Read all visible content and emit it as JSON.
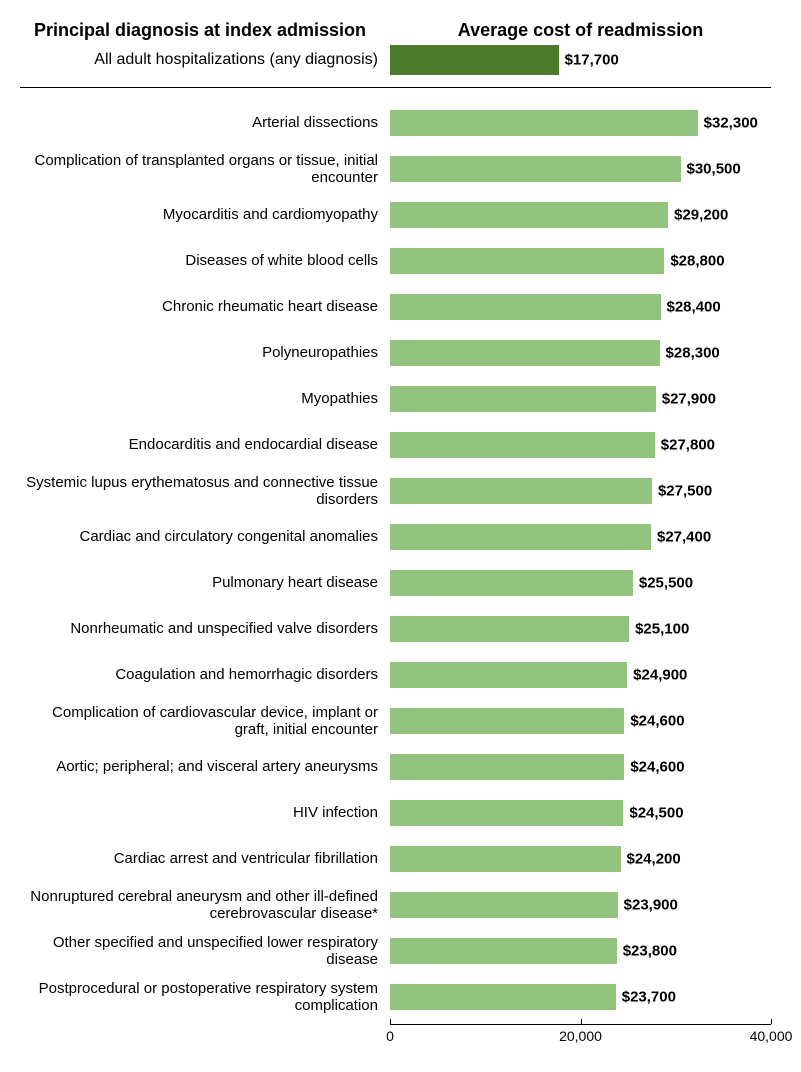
{
  "header": {
    "left": "Principal diagnosis at index admission",
    "right": "Average cost of readmission"
  },
  "axis": {
    "max": 40000,
    "ticks": [
      {
        "value": 0,
        "label": "0"
      },
      {
        "value": 20000,
        "label": "20,000"
      },
      {
        "value": 40000,
        "label": "40,000"
      }
    ]
  },
  "colors": {
    "summary_bar": "#4b7a2c",
    "item_bar": "#92c47d",
    "text": "#000000",
    "background": "#ffffff"
  },
  "summary": {
    "label": "All adult hospitalizations (any diagnosis)",
    "value": 17700,
    "value_label": "$17,700"
  },
  "items": [
    {
      "label": "Arterial dissections",
      "value": 32300,
      "value_label": "$32,300"
    },
    {
      "label": "Complication of transplanted organs or tissue, initial encounter",
      "value": 30500,
      "value_label": "$30,500"
    },
    {
      "label": "Myocarditis and cardiomyopathy",
      "value": 29200,
      "value_label": "$29,200"
    },
    {
      "label": "Diseases of white blood cells",
      "value": 28800,
      "value_label": "$28,800"
    },
    {
      "label": "Chronic rheumatic heart disease",
      "value": 28400,
      "value_label": "$28,400"
    },
    {
      "label": "Polyneuropathies",
      "value": 28300,
      "value_label": "$28,300"
    },
    {
      "label": "Myopathies",
      "value": 27900,
      "value_label": "$27,900"
    },
    {
      "label": "Endocarditis and endocardial disease",
      "value": 27800,
      "value_label": "$27,800"
    },
    {
      "label": "Systemic lupus erythematosus and connective tissue disorders",
      "value": 27500,
      "value_label": "$27,500"
    },
    {
      "label": "Cardiac and circulatory congenital anomalies",
      "value": 27400,
      "value_label": "$27,400"
    },
    {
      "label": "Pulmonary heart disease",
      "value": 25500,
      "value_label": "$25,500"
    },
    {
      "label": "Nonrheumatic and unspecified valve disorders",
      "value": 25100,
      "value_label": "$25,100"
    },
    {
      "label": "Coagulation and hemorrhagic disorders",
      "value": 24900,
      "value_label": "$24,900"
    },
    {
      "label": "Complication of cardiovascular device, implant or graft, initial encounter",
      "value": 24600,
      "value_label": "$24,600"
    },
    {
      "label": "Aortic; peripheral; and visceral artery aneurysms",
      "value": 24600,
      "value_label": "$24,600"
    },
    {
      "label": "HIV infection",
      "value": 24500,
      "value_label": "$24,500"
    },
    {
      "label": "Cardiac arrest and ventricular fibrillation",
      "value": 24200,
      "value_label": "$24,200"
    },
    {
      "label": "Nonruptured cerebral aneurysm and other ill-defined cerebrovascular disease*",
      "value": 23900,
      "value_label": "$23,900"
    },
    {
      "label": "Other specified and unspecified lower respiratory disease",
      "value": 23800,
      "value_label": "$23,800"
    },
    {
      "label": "Postprocedural or postoperative respiratory system complication",
      "value": 23700,
      "value_label": "$23,700"
    }
  ],
  "typography": {
    "header_fontsize": 18,
    "header_weight": "bold",
    "label_fontsize": 15,
    "value_fontsize": 15,
    "axis_fontsize": 14
  }
}
